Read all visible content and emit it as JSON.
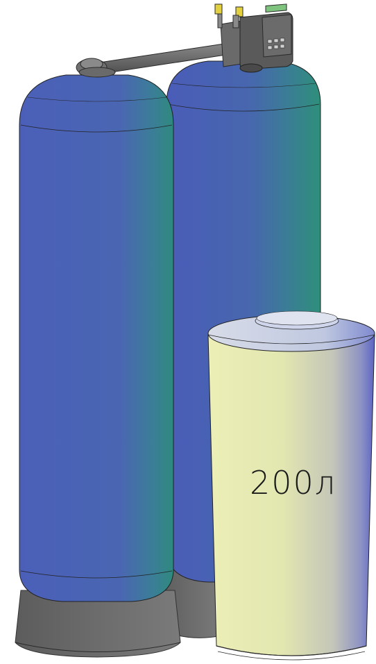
{
  "scene": {
    "colors": {
      "tank_blue": "#4a62b8",
      "tank_teal": "#2f8a86",
      "base_grey": "#6e6e6e",
      "brine_tank": "#e8ebb4",
      "control_head": "#5c5c5c",
      "display_green": "#7ec37e",
      "fitting_yellow": "#e2d040"
    },
    "brine_tank": {
      "volume_label": "200л"
    }
  }
}
